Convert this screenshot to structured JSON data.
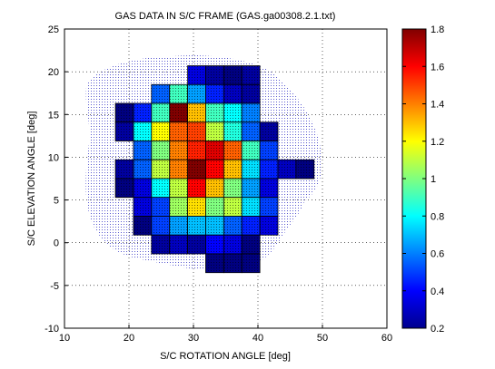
{
  "chart_data": {
    "type": "heatmap",
    "title": "GAS DATA IN S/C FRAME (GAS.ga00308.2.1.txt)",
    "xlabel": "S/C ROTATION ANGLE [deg]",
    "ylabel": "S/C ELEVATION ANGLE [deg]",
    "xlim": [
      10,
      60
    ],
    "ylim": [
      -10,
      25
    ],
    "xticks": [
      "10",
      "20",
      "30",
      "40",
      "50",
      "60"
    ],
    "yticks": [
      "-10",
      "-5",
      "0",
      "5",
      "10",
      "15",
      "20",
      "25"
    ],
    "grid": true,
    "cell_size_deg": [
      2.8,
      2.2
    ],
    "colorbar": {
      "range": [
        0.2,
        1.8
      ],
      "ticks": [
        "0.2",
        "0.4",
        "0.6",
        "0.8",
        "1",
        "1.2",
        "1.4",
        "1.6",
        "1.8"
      ],
      "colormap": "jet"
    },
    "bins": [
      {
        "x": 30.5,
        "y": 19.6,
        "v": 0.35
      },
      {
        "x": 33.3,
        "y": 19.6,
        "v": 0.25
      },
      {
        "x": 36.1,
        "y": 19.6,
        "v": 0.2
      },
      {
        "x": 38.9,
        "y": 19.6,
        "v": 0.25
      },
      {
        "x": 24.9,
        "y": 17.4,
        "v": 0.55
      },
      {
        "x": 27.7,
        "y": 17.4,
        "v": 0.9
      },
      {
        "x": 30.5,
        "y": 17.4,
        "v": 0.65
      },
      {
        "x": 33.3,
        "y": 17.4,
        "v": 0.45
      },
      {
        "x": 36.1,
        "y": 17.4,
        "v": 0.3
      },
      {
        "x": 38.9,
        "y": 17.4,
        "v": 0.25
      },
      {
        "x": 19.3,
        "y": 15.2,
        "v": 0.2
      },
      {
        "x": 22.1,
        "y": 15.2,
        "v": 0.45
      },
      {
        "x": 24.9,
        "y": 15.2,
        "v": 0.9
      },
      {
        "x": 27.7,
        "y": 15.2,
        "v": 1.8
      },
      {
        "x": 30.5,
        "y": 15.2,
        "v": 1.3
      },
      {
        "x": 33.3,
        "y": 15.2,
        "v": 0.9
      },
      {
        "x": 36.1,
        "y": 15.2,
        "v": 0.8
      },
      {
        "x": 38.9,
        "y": 15.2,
        "v": 0.6
      },
      {
        "x": 19.3,
        "y": 13.0,
        "v": 0.25
      },
      {
        "x": 22.1,
        "y": 13.0,
        "v": 0.8
      },
      {
        "x": 24.9,
        "y": 13.0,
        "v": 1.2
      },
      {
        "x": 27.7,
        "y": 13.0,
        "v": 1.45
      },
      {
        "x": 30.5,
        "y": 13.0,
        "v": 1.5
      },
      {
        "x": 33.3,
        "y": 13.0,
        "v": 1.1
      },
      {
        "x": 36.1,
        "y": 13.0,
        "v": 0.85
      },
      {
        "x": 38.9,
        "y": 13.0,
        "v": 0.55
      },
      {
        "x": 41.7,
        "y": 13.0,
        "v": 0.25
      },
      {
        "x": 22.1,
        "y": 10.8,
        "v": 0.55
      },
      {
        "x": 24.9,
        "y": 10.8,
        "v": 1.0
      },
      {
        "x": 27.7,
        "y": 10.8,
        "v": 1.4
      },
      {
        "x": 30.5,
        "y": 10.8,
        "v": 1.55
      },
      {
        "x": 33.3,
        "y": 10.8,
        "v": 1.65
      },
      {
        "x": 36.1,
        "y": 10.8,
        "v": 1.45
      },
      {
        "x": 38.9,
        "y": 10.8,
        "v": 0.9
      },
      {
        "x": 41.7,
        "y": 10.8,
        "v": 0.5
      },
      {
        "x": 19.3,
        "y": 8.6,
        "v": 0.25
      },
      {
        "x": 22.1,
        "y": 8.6,
        "v": 0.55
      },
      {
        "x": 24.9,
        "y": 8.6,
        "v": 1.1
      },
      {
        "x": 27.7,
        "y": 8.6,
        "v": 1.4
      },
      {
        "x": 30.5,
        "y": 8.6,
        "v": 1.8
      },
      {
        "x": 33.3,
        "y": 8.6,
        "v": 1.6
      },
      {
        "x": 36.1,
        "y": 8.6,
        "v": 1.3
      },
      {
        "x": 38.9,
        "y": 8.6,
        "v": 0.75
      },
      {
        "x": 41.7,
        "y": 8.6,
        "v": 0.45
      },
      {
        "x": 44.5,
        "y": 8.6,
        "v": 0.3
      },
      {
        "x": 47.3,
        "y": 8.6,
        "v": 0.2
      },
      {
        "x": 19.3,
        "y": 6.4,
        "v": 0.2
      },
      {
        "x": 22.1,
        "y": 6.4,
        "v": 0.35
      },
      {
        "x": 24.9,
        "y": 6.4,
        "v": 0.8
      },
      {
        "x": 27.7,
        "y": 6.4,
        "v": 1.1
      },
      {
        "x": 30.5,
        "y": 6.4,
        "v": 1.6
      },
      {
        "x": 33.3,
        "y": 6.4,
        "v": 1.3
      },
      {
        "x": 36.1,
        "y": 6.4,
        "v": 1.0
      },
      {
        "x": 38.9,
        "y": 6.4,
        "v": 0.65
      },
      {
        "x": 41.7,
        "y": 6.4,
        "v": 0.35
      },
      {
        "x": 22.1,
        "y": 4.2,
        "v": 0.35
      },
      {
        "x": 24.9,
        "y": 4.2,
        "v": 0.5
      },
      {
        "x": 27.7,
        "y": 4.2,
        "v": 1.05
      },
      {
        "x": 30.5,
        "y": 4.2,
        "v": 1.25
      },
      {
        "x": 33.3,
        "y": 4.2,
        "v": 1.0
      },
      {
        "x": 36.1,
        "y": 4.2,
        "v": 1.1
      },
      {
        "x": 38.9,
        "y": 4.2,
        "v": 0.75
      },
      {
        "x": 41.7,
        "y": 4.2,
        "v": 0.5
      },
      {
        "x": 22.1,
        "y": 2.0,
        "v": 0.2
      },
      {
        "x": 24.9,
        "y": 2.0,
        "v": 0.5
      },
      {
        "x": 27.7,
        "y": 2.0,
        "v": 0.65
      },
      {
        "x": 30.5,
        "y": 2.0,
        "v": 0.7
      },
      {
        "x": 33.3,
        "y": 2.0,
        "v": 0.7
      },
      {
        "x": 36.1,
        "y": 2.0,
        "v": 0.55
      },
      {
        "x": 38.9,
        "y": 2.0,
        "v": 0.45
      },
      {
        "x": 41.7,
        "y": 2.0,
        "v": 0.35
      },
      {
        "x": 24.9,
        "y": -0.2,
        "v": 0.25
      },
      {
        "x": 27.7,
        "y": -0.2,
        "v": 0.3
      },
      {
        "x": 30.5,
        "y": -0.2,
        "v": 0.25
      },
      {
        "x": 33.3,
        "y": -0.2,
        "v": 0.4
      },
      {
        "x": 36.1,
        "y": -0.2,
        "v": 0.35
      },
      {
        "x": 38.9,
        "y": -0.2,
        "v": 0.2
      },
      {
        "x": 33.3,
        "y": -2.4,
        "v": 0.2
      },
      {
        "x": 36.1,
        "y": -2.4,
        "v": 0.2
      },
      {
        "x": 38.9,
        "y": -2.4,
        "v": 0.2
      }
    ]
  }
}
